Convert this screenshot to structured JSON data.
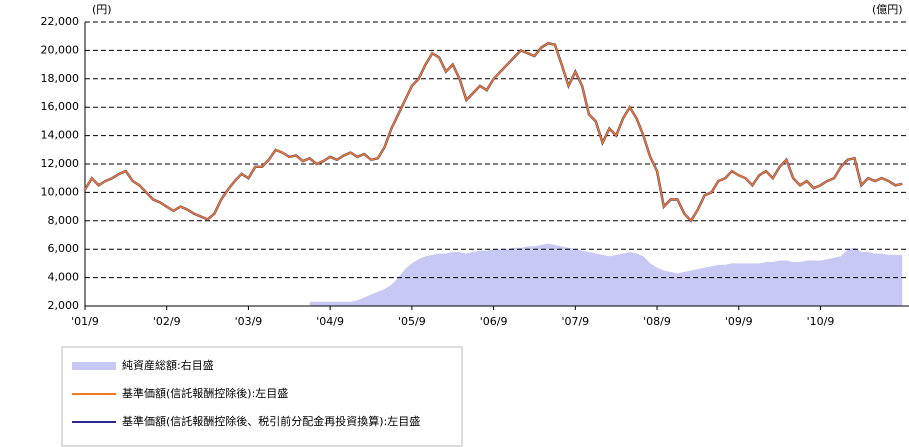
{
  "chart_data": {
    "type": "line",
    "y_unit_label": "(円)",
    "y2_unit_label": "(億円)",
    "x": [
      "2001-09",
      "2001-10",
      "2001-11",
      "2001-12",
      "2002-01",
      "2002-02",
      "2002-03",
      "2002-04",
      "2002-05",
      "2002-06",
      "2002-07",
      "2002-08",
      "2002-09",
      "2002-10",
      "2002-11",
      "2002-12",
      "2003-01",
      "2003-02",
      "2003-03",
      "2003-04",
      "2003-05",
      "2003-06",
      "2003-07",
      "2003-08",
      "2003-09",
      "2003-10",
      "2003-11",
      "2003-12",
      "2004-01",
      "2004-02",
      "2004-03",
      "2004-04",
      "2004-05",
      "2004-06",
      "2004-07",
      "2004-08",
      "2004-09",
      "2004-10",
      "2004-11",
      "2004-12",
      "2005-01",
      "2005-02",
      "2005-03",
      "2005-04",
      "2005-05",
      "2005-06",
      "2005-07",
      "2005-08",
      "2005-09",
      "2005-10",
      "2005-11",
      "2005-12",
      "2006-01",
      "2006-02",
      "2006-03",
      "2006-04",
      "2006-05",
      "2006-06",
      "2006-07",
      "2006-08",
      "2006-09",
      "2006-10",
      "2006-11",
      "2006-12",
      "2007-01",
      "2007-02",
      "2007-03",
      "2007-04",
      "2007-05",
      "2007-06",
      "2007-07",
      "2007-08",
      "2007-09",
      "2007-10",
      "2007-11",
      "2007-12",
      "2008-01",
      "2008-02",
      "2008-03",
      "2008-04",
      "2008-05",
      "2008-06",
      "2008-07",
      "2008-08",
      "2008-09",
      "2008-10",
      "2008-11",
      "2008-12",
      "2009-01",
      "2009-02",
      "2009-03",
      "2009-04",
      "2009-05",
      "2009-06",
      "2009-07",
      "2009-08",
      "2009-09",
      "2009-10",
      "2009-11",
      "2009-12",
      "2010-01",
      "2010-02",
      "2010-03",
      "2010-04",
      "2010-05",
      "2010-06",
      "2010-07",
      "2010-08",
      "2010-09",
      "2010-10",
      "2010-11",
      "2010-12",
      "2011-01",
      "2011-02",
      "2011-03",
      "2011-04",
      "2011-05",
      "2011-06",
      "2011-07",
      "2011-08",
      "2011-09"
    ],
    "xlim": [
      "2001-09",
      "2011-10"
    ],
    "xticks": [
      {
        "value": "2001-09",
        "label": "'01/9"
      },
      {
        "value": "2002-09",
        "label": "'02/9"
      },
      {
        "value": "2003-09",
        "label": "'03/9"
      },
      {
        "value": "2004-09",
        "label": "'04/9"
      },
      {
        "value": "2005-09",
        "label": "'05/9"
      },
      {
        "value": "2006-09",
        "label": "'06/9"
      },
      {
        "value": "2007-09",
        "label": "'07/9"
      },
      {
        "value": "2008-09",
        "label": "'08/9"
      },
      {
        "value": "2009-09",
        "label": "'09/9"
      },
      {
        "value": "2010-09",
        "label": "'10/9"
      }
    ],
    "ylim": [
      2000,
      22000
    ],
    "yticks": [
      {
        "value": 2000,
        "label": "2,000"
      },
      {
        "value": 4000,
        "label": "4,000"
      },
      {
        "value": 6000,
        "label": "6,000"
      },
      {
        "value": 8000,
        "label": "8,000"
      },
      {
        "value": 10000,
        "label": "10,000"
      },
      {
        "value": 12000,
        "label": "12,000"
      },
      {
        "value": 14000,
        "label": "14,000"
      },
      {
        "value": 16000,
        "label": "16,000"
      },
      {
        "value": 18000,
        "label": "18,000"
      },
      {
        "value": 20000,
        "label": "20,000"
      },
      {
        "value": 22000,
        "label": "22,000"
      }
    ],
    "y2lim": [
      0,
      2000
    ],
    "grid": true,
    "series": [
      {
        "name": "純資産総額:右目盛",
        "kind": "area",
        "axis": "y2",
        "color": "#c8c8f4",
        "values": [
          null,
          null,
          null,
          null,
          null,
          null,
          null,
          null,
          null,
          null,
          null,
          null,
          null,
          null,
          null,
          null,
          null,
          null,
          null,
          null,
          null,
          null,
          null,
          null,
          null,
          null,
          null,
          null,
          null,
          null,
          null,
          null,
          null,
          30,
          30,
          30,
          30,
          30,
          30,
          30,
          40,
          60,
          80,
          100,
          120,
          150,
          200,
          260,
          300,
          330,
          350,
          360,
          370,
          370,
          380,
          380,
          370,
          380,
          390,
          390,
          400,
          400,
          400,
          410,
          410,
          420,
          420,
          430,
          440,
          430,
          420,
          410,
          400,
          390,
          380,
          370,
          360,
          350,
          360,
          370,
          380,
          370,
          350,
          300,
          270,
          250,
          240,
          230,
          240,
          250,
          260,
          270,
          280,
          290,
          290,
          300,
          300,
          300,
          300,
          300,
          310,
          310,
          320,
          320,
          310,
          310,
          320,
          320,
          320,
          330,
          340,
          350,
          400,
          410,
          380,
          380,
          370,
          370,
          360,
          360,
          360
        ]
      },
      {
        "name": "基準価額(信託報酬控除後):左目盛",
        "kind": "line",
        "color": "#f07820",
        "values": [
          10200,
          11000,
          10500,
          10800,
          11000,
          11300,
          11500,
          10800,
          10500,
          10000,
          9500,
          9300,
          9000,
          8700,
          9000,
          8800,
          8500,
          8300,
          8100,
          8500,
          9500,
          10200,
          10800,
          11300,
          11000,
          11800,
          11800,
          12300,
          13000,
          12800,
          12500,
          12600,
          12200,
          12400,
          12000,
          12200,
          12500,
          12300,
          12600,
          12800,
          12500,
          12700,
          12300,
          12400,
          13200,
          14500,
          15500,
          16500,
          17500,
          18000,
          19000,
          19800,
          19500,
          18500,
          19000,
          18000,
          16500,
          17000,
          17500,
          17200,
          18000,
          18500,
          19000,
          19500,
          20000,
          19800,
          19600,
          20200,
          20500,
          20400,
          19000,
          17500,
          18500,
          17500,
          15500,
          15000,
          13500,
          14500,
          14000,
          15200,
          16000,
          15200,
          14000,
          12500,
          11500,
          9000,
          9500,
          9500,
          8500,
          8000,
          8800,
          9800,
          10000,
          10800,
          11000,
          11500,
          11200,
          11000,
          10500,
          11200,
          11500,
          11000,
          11800,
          12300,
          11000,
          10500,
          10800,
          10300,
          10500,
          10800,
          11000,
          11800,
          12300,
          12400,
          10500,
          11000,
          10800,
          11000,
          10800,
          10500,
          10600
        ]
      },
      {
        "name": "基準価額(信託報酬控除後、税引前分配金再投資換算):左目盛",
        "kind": "line",
        "color": "#2a2a8c",
        "values": [
          10200,
          11000,
          10500,
          10800,
          11000,
          11300,
          11500,
          10800,
          10500,
          10000,
          9500,
          9300,
          9000,
          8700,
          9000,
          8800,
          8500,
          8300,
          8100,
          8500,
          9500,
          10200,
          10800,
          11300,
          11000,
          11800,
          11800,
          12300,
          13000,
          12800,
          12500,
          12600,
          12200,
          12400,
          12000,
          12200,
          12500,
          12300,
          12600,
          12800,
          12500,
          12700,
          12300,
          12400,
          13200,
          14500,
          15500,
          16500,
          17500,
          18000,
          19000,
          19800,
          19500,
          18500,
          19000,
          18000,
          16500,
          17000,
          17500,
          17200,
          18000,
          18500,
          19000,
          19500,
          20000,
          19800,
          19600,
          20200,
          20500,
          20400,
          19000,
          17500,
          18500,
          17500,
          15500,
          15000,
          13500,
          14500,
          14000,
          15200,
          16000,
          15200,
          14000,
          12500,
          11500,
          9000,
          9500,
          9500,
          8500,
          8000,
          8800,
          9800,
          10000,
          10800,
          11000,
          11500,
          11200,
          11000,
          10500,
          11200,
          11500,
          11000,
          11800,
          12300,
          11000,
          10500,
          10800,
          10300,
          10500,
          10800,
          11000,
          11800,
          12300,
          12400,
          10500,
          11000,
          10800,
          11000,
          10800,
          10500,
          10600
        ]
      }
    ]
  }
}
